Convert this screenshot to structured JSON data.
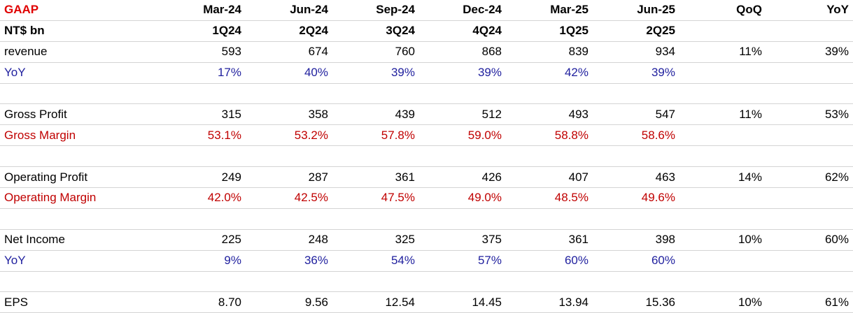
{
  "header": {
    "title": "GAAP",
    "periods": [
      "Mar-24",
      "Jun-24",
      "Sep-24",
      "Dec-24",
      "Mar-25",
      "Jun-25"
    ],
    "qoq": "QoQ",
    "yoy": "YoY"
  },
  "subheader": {
    "unit": "NT$ bn",
    "quarters": [
      "1Q24",
      "2Q24",
      "3Q24",
      "4Q24",
      "1Q25",
      "2Q25"
    ]
  },
  "rows": [
    {
      "label": "revenue",
      "values": [
        "593",
        "674",
        "760",
        "868",
        "839",
        "934"
      ],
      "qoq": "11%",
      "yoy": "39%",
      "color": "#000000"
    },
    {
      "label": "YoY",
      "values": [
        "17%",
        "40%",
        "39%",
        "39%",
        "42%",
        "39%"
      ],
      "qoq": "",
      "yoy": "",
      "color": "#1f1f9e"
    },
    {
      "label": "",
      "values": [
        "",
        "",
        "",
        "",
        "",
        ""
      ],
      "qoq": "",
      "yoy": "",
      "color": "#000000"
    },
    {
      "label": "Gross Profit",
      "values": [
        "315",
        "358",
        "439",
        "512",
        "493",
        "547"
      ],
      "qoq": "11%",
      "yoy": "53%",
      "color": "#000000"
    },
    {
      "label": "Gross Margin",
      "values": [
        "53.1%",
        "53.2%",
        "57.8%",
        "59.0%",
        "58.8%",
        "58.6%"
      ],
      "qoq": "",
      "yoy": "",
      "color": "#c00000"
    },
    {
      "label": "",
      "values": [
        "",
        "",
        "",
        "",
        "",
        ""
      ],
      "qoq": "",
      "yoy": "",
      "color": "#000000"
    },
    {
      "label": "Operating Profit",
      "values": [
        "249",
        "287",
        "361",
        "426",
        "407",
        "463"
      ],
      "qoq": "14%",
      "yoy": "62%",
      "color": "#000000"
    },
    {
      "label": "Operating Margin",
      "values": [
        "42.0%",
        "42.5%",
        "47.5%",
        "49.0%",
        "48.5%",
        "49.6%"
      ],
      "qoq": "",
      "yoy": "",
      "color": "#c00000"
    },
    {
      "label": "",
      "values": [
        "",
        "",
        "",
        "",
        "",
        ""
      ],
      "qoq": "",
      "yoy": "",
      "color": "#000000"
    },
    {
      "label": "Net Income",
      "values": [
        "225",
        "248",
        "325",
        "375",
        "361",
        "398"
      ],
      "qoq": "10%",
      "yoy": "60%",
      "color": "#000000"
    },
    {
      "label": "YoY",
      "values": [
        "9%",
        "36%",
        "54%",
        "57%",
        "60%",
        "60%"
      ],
      "qoq": "",
      "yoy": "",
      "color": "#1f1f9e"
    },
    {
      "label": "",
      "values": [
        "",
        "",
        "",
        "",
        "",
        ""
      ],
      "qoq": "",
      "yoy": "",
      "color": "#000000"
    },
    {
      "label": "EPS",
      "values": [
        "8.70",
        "9.56",
        "12.54",
        "14.45",
        "13.94",
        "15.36"
      ],
      "qoq": "10%",
      "yoy": "61%",
      "color": "#000000"
    }
  ],
  "colors": {
    "title": "#e00000",
    "margin_rows": "#c00000",
    "yoy_rows": "#1f1f9e",
    "gridline": "#d4d4d4"
  }
}
